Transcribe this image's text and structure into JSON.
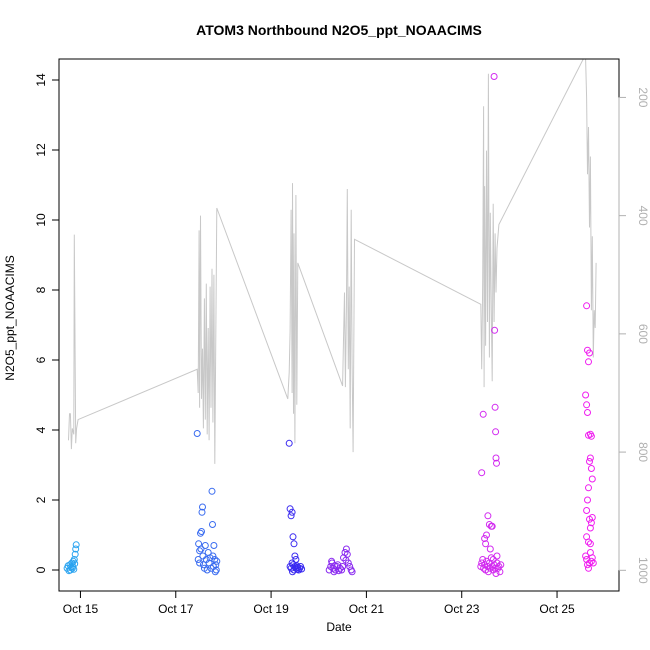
{
  "chart_data": {
    "type": "scatter",
    "title": "ATOM3 Northbound N2O5_ppt_NOAACIMS",
    "xlabel": "Date",
    "ylabel": "N2O5_ppt_NOAACIMS",
    "x_unit": "day of October 2017",
    "xlim": [
      14.55,
      26.3
    ],
    "ylim": [
      -0.6,
      14.6
    ],
    "x_ticks": [
      {
        "value": 15,
        "label": "Oct 15"
      },
      {
        "value": 17,
        "label": "Oct 17"
      },
      {
        "value": 19,
        "label": "Oct 19"
      },
      {
        "value": 21,
        "label": "Oct 21"
      },
      {
        "value": 23,
        "label": "Oct 23"
      },
      {
        "value": 25,
        "label": "Oct 25"
      }
    ],
    "y_ticks": [
      0,
      2,
      4,
      6,
      8,
      10,
      12,
      14
    ],
    "right_axis": {
      "label": "",
      "color": "#b0b0b0",
      "reversed": true,
      "ylim": [
        1035,
        135
      ],
      "ticks": [
        200,
        400,
        600,
        800,
        1000
      ]
    },
    "marker": "open-circle",
    "series": [
      {
        "color": "#29a3f0",
        "points": [
          [
            14.72,
            0.05
          ],
          [
            14.74,
            0.12
          ],
          [
            14.76,
            -0.02
          ],
          [
            14.78,
            0.15
          ],
          [
            14.8,
            0.08
          ],
          [
            14.82,
            0.2
          ],
          [
            14.84,
            0.1
          ],
          [
            14.85,
            0.25
          ],
          [
            14.86,
            0.02
          ],
          [
            14.87,
            0.3
          ],
          [
            14.88,
            0.18
          ],
          [
            14.89,
            0.45
          ],
          [
            14.9,
            0.6
          ],
          [
            14.91,
            0.72
          ],
          [
            14.83,
            0.05
          ],
          [
            14.79,
            0.0
          ]
        ]
      },
      {
        "color": "#3a6cf0",
        "points": [
          [
            17.45,
            3.9
          ],
          [
            17.48,
            0.75
          ],
          [
            17.5,
            0.55
          ],
          [
            17.52,
            1.05
          ],
          [
            17.54,
            1.1
          ],
          [
            17.55,
            1.65
          ],
          [
            17.56,
            1.8
          ],
          [
            17.47,
            0.3
          ],
          [
            17.5,
            0.2
          ],
          [
            17.53,
            0.6
          ],
          [
            17.57,
            0.4
          ],
          [
            17.58,
            0.15
          ],
          [
            17.6,
            0.05
          ],
          [
            17.62,
            0.7
          ],
          [
            17.64,
            0.3
          ],
          [
            17.66,
            0.0
          ],
          [
            17.68,
            0.5
          ],
          [
            17.7,
            0.2
          ],
          [
            17.72,
            0.35
          ],
          [
            17.74,
            0.05
          ],
          [
            17.76,
            2.25
          ],
          [
            17.77,
            1.3
          ],
          [
            17.78,
            0.4
          ],
          [
            17.79,
            0.1
          ],
          [
            17.8,
            0.7
          ],
          [
            17.82,
            0.3
          ],
          [
            17.83,
            -0.05
          ],
          [
            17.84,
            0.15
          ],
          [
            17.85,
            0.0
          ],
          [
            17.86,
            0.25
          ]
        ]
      },
      {
        "color": "#3a2af0",
        "points": [
          [
            19.38,
            3.62
          ],
          [
            19.4,
            1.75
          ],
          [
            19.42,
            1.55
          ],
          [
            19.44,
            1.65
          ],
          [
            19.46,
            0.95
          ],
          [
            19.48,
            0.75
          ],
          [
            19.5,
            0.4
          ],
          [
            19.52,
            0.3
          ],
          [
            19.4,
            0.1
          ],
          [
            19.42,
            0.05
          ],
          [
            19.44,
            0.2
          ],
          [
            19.46,
            0.15
          ],
          [
            19.48,
            0.0
          ],
          [
            19.5,
            0.1
          ],
          [
            19.52,
            0.05
          ],
          [
            19.54,
            0.12
          ],
          [
            19.56,
            0.08
          ],
          [
            19.58,
            0.0
          ],
          [
            19.6,
            0.05
          ],
          [
            19.62,
            0.1
          ],
          [
            19.64,
            0.03
          ],
          [
            19.45,
            -0.05
          ],
          [
            19.55,
            0.02
          ]
        ]
      },
      {
        "color": "#8a2af0",
        "points": [
          [
            20.22,
            0.0
          ],
          [
            20.25,
            0.1
          ],
          [
            20.28,
            0.2
          ],
          [
            20.3,
            0.05
          ],
          [
            20.32,
            -0.05
          ],
          [
            20.35,
            0.0
          ],
          [
            20.38,
            0.1
          ],
          [
            20.4,
            0.15
          ],
          [
            20.42,
            -0.02
          ],
          [
            20.45,
            0.05
          ],
          [
            20.48,
            0.0
          ],
          [
            20.5,
            0.1
          ],
          [
            20.52,
            0.35
          ],
          [
            20.55,
            0.5
          ],
          [
            20.58,
            0.6
          ],
          [
            20.6,
            0.45
          ],
          [
            20.62,
            0.2
          ],
          [
            20.65,
            0.1
          ],
          [
            20.68,
            0.0
          ],
          [
            20.7,
            -0.05
          ],
          [
            20.27,
            0.25
          ],
          [
            20.33,
            0.12
          ],
          [
            20.57,
            0.28
          ]
        ]
      },
      {
        "color": "#d22af0",
        "points": [
          [
            23.42,
            2.78
          ],
          [
            23.45,
            4.45
          ],
          [
            23.48,
            0.9
          ],
          [
            23.5,
            0.75
          ],
          [
            23.52,
            1.0
          ],
          [
            23.55,
            1.55
          ],
          [
            23.58,
            1.3
          ],
          [
            23.6,
            0.6
          ],
          [
            23.62,
            1.25
          ],
          [
            23.64,
            1.25
          ],
          [
            23.66,
            0.3
          ],
          [
            23.68,
            14.1
          ],
          [
            23.69,
            6.85
          ],
          [
            23.7,
            4.65
          ],
          [
            23.71,
            3.95
          ],
          [
            23.72,
            3.2
          ],
          [
            23.73,
            3.05
          ],
          [
            23.74,
            0.4
          ],
          [
            23.4,
            0.1
          ],
          [
            23.42,
            0.2
          ],
          [
            23.44,
            0.3
          ],
          [
            23.46,
            0.05
          ],
          [
            23.48,
            0.15
          ],
          [
            23.5,
            0.0
          ],
          [
            23.52,
            0.25
          ],
          [
            23.54,
            0.1
          ],
          [
            23.56,
            -0.05
          ],
          [
            23.58,
            0.2
          ],
          [
            23.6,
            0.05
          ],
          [
            23.62,
            0.35
          ],
          [
            23.64,
            0.1
          ],
          [
            23.66,
            0.0
          ],
          [
            23.68,
            0.15
          ],
          [
            23.7,
            0.05
          ],
          [
            23.72,
            -0.1
          ],
          [
            23.74,
            0.2
          ],
          [
            23.76,
            0.05
          ],
          [
            23.78,
            0.1
          ],
          [
            23.8,
            -0.05
          ],
          [
            23.82,
            0.15
          ]
        ]
      },
      {
        "color": "#f01ef0",
        "points": [
          [
            25.62,
            7.55
          ],
          [
            25.64,
            6.28
          ],
          [
            25.66,
            5.95
          ],
          [
            25.68,
            6.2
          ],
          [
            25.6,
            5.0
          ],
          [
            25.62,
            4.72
          ],
          [
            25.64,
            4.5
          ],
          [
            25.66,
            3.85
          ],
          [
            25.7,
            3.88
          ],
          [
            25.72,
            3.82
          ],
          [
            25.68,
            3.1
          ],
          [
            25.7,
            3.2
          ],
          [
            25.72,
            2.9
          ],
          [
            25.74,
            2.6
          ],
          [
            25.66,
            2.35
          ],
          [
            25.64,
            2.0
          ],
          [
            25.62,
            1.7
          ],
          [
            25.68,
            1.45
          ],
          [
            25.72,
            1.35
          ],
          [
            25.74,
            1.5
          ],
          [
            25.7,
            1.2
          ],
          [
            25.62,
            0.95
          ],
          [
            25.66,
            0.8
          ],
          [
            25.7,
            0.75
          ],
          [
            25.6,
            0.4
          ],
          [
            25.62,
            0.3
          ],
          [
            25.64,
            0.15
          ],
          [
            25.66,
            0.05
          ],
          [
            25.68,
            0.2
          ],
          [
            25.7,
            0.5
          ],
          [
            25.72,
            0.25
          ],
          [
            25.74,
            0.35
          ],
          [
            25.76,
            0.2
          ]
        ]
      }
    ],
    "pressure_line": {
      "color": "#c8c8c8",
      "points": [
        [
          14.75,
          780
        ],
        [
          14.77,
          735
        ],
        [
          14.79,
          735
        ],
        [
          14.81,
          795
        ],
        [
          14.83,
          760
        ],
        [
          14.86,
          770
        ],
        [
          14.87,
          432
        ],
        [
          14.9,
          785
        ],
        [
          14.92,
          760
        ],
        [
          14.95,
          745
        ],
        [
          17.45,
          660
        ],
        [
          17.47,
          700
        ],
        [
          17.49,
          425
        ],
        [
          17.5,
          725
        ],
        [
          17.52,
          400
        ],
        [
          17.54,
          710
        ],
        [
          17.56,
          625
        ],
        [
          17.58,
          760
        ],
        [
          17.6,
          540
        ],
        [
          17.62,
          745
        ],
        [
          17.64,
          515
        ],
        [
          17.66,
          770
        ],
        [
          17.68,
          590
        ],
        [
          17.7,
          780
        ],
        [
          17.72,
          520
        ],
        [
          17.74,
          725
        ],
        [
          17.76,
          490
        ],
        [
          17.78,
          750
        ],
        [
          17.8,
          500
        ],
        [
          17.82,
          820
        ],
        [
          17.86,
          387
        ],
        [
          19.35,
          710
        ],
        [
          19.38,
          665
        ],
        [
          19.4,
          595
        ],
        [
          19.42,
          390
        ],
        [
          19.44,
          700
        ],
        [
          19.45,
          345
        ],
        [
          19.47,
          735
        ],
        [
          19.48,
          430
        ],
        [
          19.5,
          785
        ],
        [
          19.52,
          365
        ],
        [
          19.54,
          720
        ],
        [
          19.56,
          480
        ],
        [
          20.5,
          688
        ],
        [
          20.52,
          610
        ],
        [
          20.54,
          530
        ],
        [
          20.56,
          690
        ],
        [
          20.58,
          560
        ],
        [
          20.6,
          355
        ],
        [
          20.62,
          660
        ],
        [
          20.64,
          520
        ],
        [
          20.66,
          760
        ],
        [
          20.68,
          390
        ],
        [
          20.7,
          650
        ],
        [
          20.72,
          800
        ],
        [
          20.75,
          440
        ],
        [
          23.4,
          550
        ],
        [
          23.42,
          660
        ],
        [
          23.44,
          510
        ],
        [
          23.46,
          215
        ],
        [
          23.47,
          690
        ],
        [
          23.48,
          350
        ],
        [
          23.5,
          620
        ],
        [
          23.52,
          290
        ],
        [
          23.54,
          580
        ],
        [
          23.56,
          160
        ],
        [
          23.58,
          640
        ],
        [
          23.6,
          395
        ],
        [
          23.62,
          560
        ],
        [
          23.64,
          680
        ],
        [
          23.66,
          380
        ],
        [
          23.68,
          580
        ],
        [
          23.7,
          430
        ],
        [
          23.72,
          530
        ],
        [
          23.74,
          455
        ],
        [
          23.78,
          415
        ],
        [
          25.55,
          135
        ],
        [
          25.6,
          135
        ],
        [
          25.62,
          200
        ],
        [
          25.64,
          330
        ],
        [
          25.66,
          250
        ],
        [
          25.68,
          420
        ],
        [
          25.7,
          300
        ],
        [
          25.72,
          560
        ],
        [
          25.74,
          435
        ],
        [
          25.76,
          640
        ],
        [
          25.78,
          560
        ],
        [
          25.8,
          590
        ],
        [
          25.82,
          480
        ]
      ]
    }
  }
}
